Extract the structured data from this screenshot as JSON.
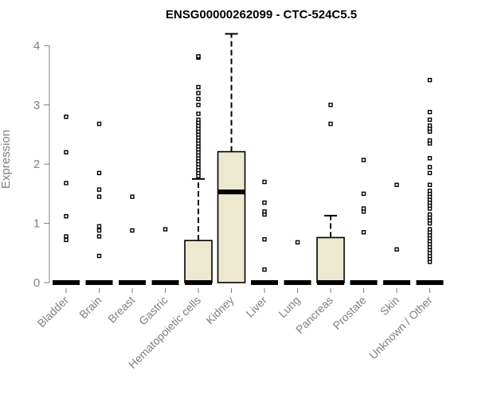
{
  "chart_data": {
    "type": "box",
    "title": "ENSG00000262099 - CTC-524C5.5",
    "ylabel": "Expression",
    "xlabel": "",
    "ylim": [
      0,
      4.2
    ],
    "yticks": [
      "0",
      "1",
      "2",
      "3",
      "4"
    ],
    "colors": {
      "box_fill": "#ede8d0",
      "stroke": "#000000",
      "axis": "#808080"
    },
    "categories": [
      "Bladder",
      "Brain",
      "Breast",
      "Gastric",
      "Hematopoietic cells",
      "Kidney",
      "Liver",
      "Lung",
      "Pancreas",
      "Prostate",
      "Skin",
      "Unknown / Other"
    ],
    "boxes": [
      {
        "q1": 0,
        "median": 0,
        "q3": 0,
        "whisker_low": 0,
        "whisker_high": 0,
        "outliers": [
          0.72,
          0.78,
          1.12,
          1.68,
          2.2,
          2.8
        ]
      },
      {
        "q1": 0,
        "median": 0,
        "q3": 0,
        "whisker_low": 0,
        "whisker_high": 0,
        "outliers": [
          0.45,
          0.78,
          0.88,
          0.95,
          1.45,
          1.57,
          1.85,
          2.68
        ]
      },
      {
        "q1": 0,
        "median": 0,
        "q3": 0,
        "whisker_low": 0,
        "whisker_high": 0,
        "outliers": [
          0.88,
          1.45
        ]
      },
      {
        "q1": 0,
        "median": 0,
        "q3": 0,
        "whisker_low": 0,
        "whisker_high": 0,
        "outliers": [
          0.9
        ]
      },
      {
        "q1": 0,
        "median": 0,
        "q3": 0.71,
        "whisker_low": 0,
        "whisker_high": 1.75,
        "outliers": [
          1.8,
          1.85,
          1.9,
          1.95,
          2.0,
          2.05,
          2.1,
          2.15,
          2.2,
          2.25,
          2.3,
          2.35,
          2.4,
          2.45,
          2.5,
          2.55,
          2.6,
          2.65,
          2.7,
          2.75,
          2.85,
          3.0,
          3.1,
          3.2,
          3.3,
          3.8,
          3.82
        ]
      },
      {
        "q1": 0,
        "median": 1.53,
        "q3": 2.21,
        "whisker_low": 0,
        "whisker_high": 4.2,
        "outliers": []
      },
      {
        "q1": 0,
        "median": 0,
        "q3": 0,
        "whisker_low": 0,
        "whisker_high": 0,
        "outliers": [
          0.22,
          0.73,
          1.15,
          1.2,
          1.35,
          1.7
        ]
      },
      {
        "q1": 0,
        "median": 0,
        "q3": 0,
        "whisker_low": 0,
        "whisker_high": 0,
        "outliers": [
          0.68
        ]
      },
      {
        "q1": 0,
        "median": 0,
        "q3": 0.76,
        "whisker_low": 0,
        "whisker_high": 1.13,
        "outliers": [
          2.68,
          3.0
        ]
      },
      {
        "q1": 0,
        "median": 0,
        "q3": 0,
        "whisker_low": 0,
        "whisker_high": 0,
        "outliers": [
          0.85,
          1.2,
          1.25,
          1.5,
          2.07
        ]
      },
      {
        "q1": 0,
        "median": 0,
        "q3": 0,
        "whisker_low": 0,
        "whisker_high": 0,
        "outliers": [
          0.56,
          1.65
        ]
      },
      {
        "q1": 0,
        "median": 0,
        "q3": 0,
        "whisker_low": 0,
        "whisker_high": 0,
        "outliers": [
          0.35,
          0.4,
          0.45,
          0.5,
          0.55,
          0.6,
          0.65,
          0.7,
          0.75,
          0.8,
          0.85,
          0.9,
          1.0,
          1.05,
          1.1,
          1.15,
          1.25,
          1.3,
          1.35,
          1.4,
          1.45,
          1.5,
          1.55,
          1.65,
          1.85,
          1.95,
          2.1,
          2.35,
          2.4,
          2.55,
          2.6,
          2.65,
          2.75,
          2.88,
          3.42
        ]
      }
    ]
  }
}
